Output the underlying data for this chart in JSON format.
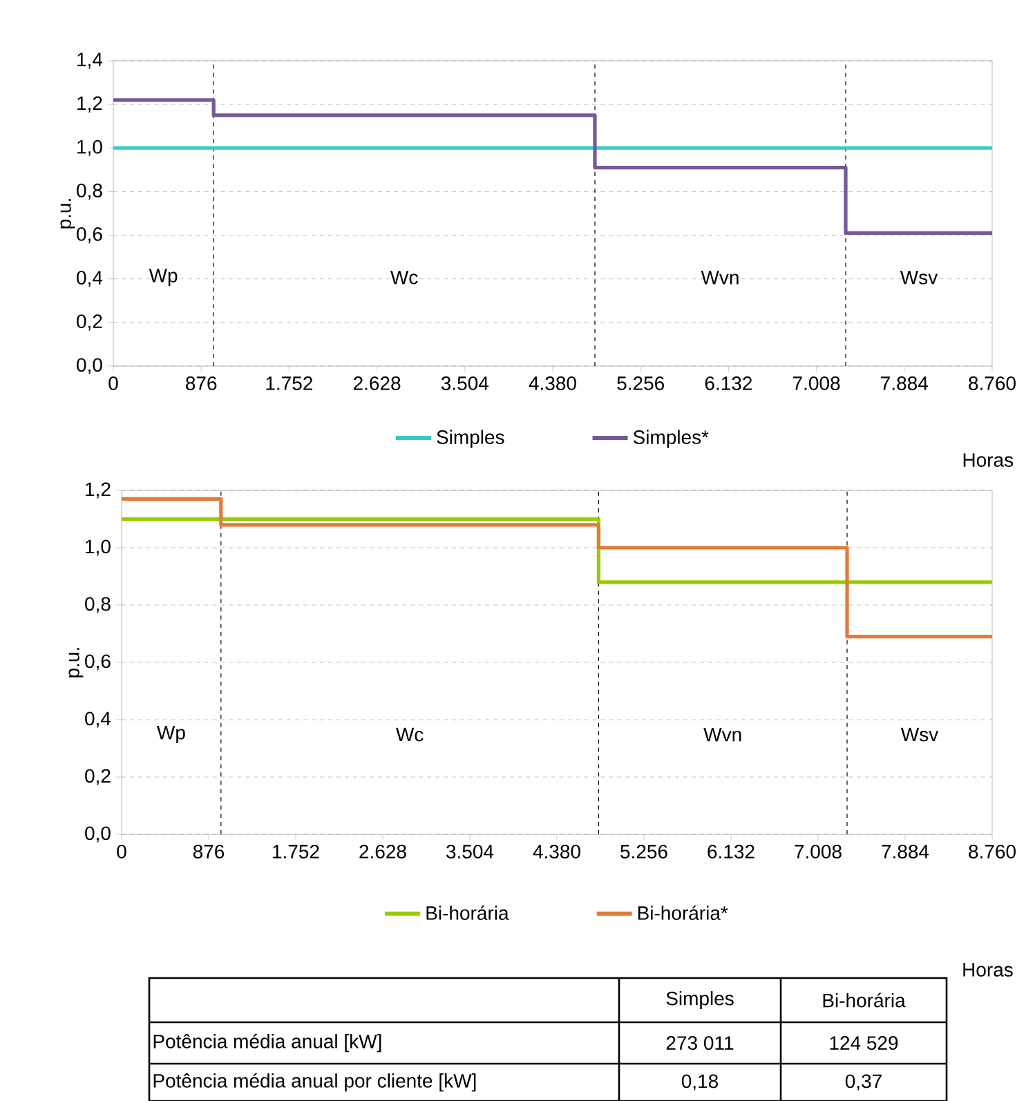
{
  "chart_data": [
    {
      "type": "step",
      "ylabel": "p.u.",
      "xlabel": "Horas",
      "xlim": [
        0,
        8760
      ],
      "ylim": [
        0,
        1.4
      ],
      "xticks": [
        0,
        876,
        {
          "value": 1752,
          "label": "1.752"
        },
        {
          "value": 2628,
          "label": "2.628"
        },
        {
          "value": 3504,
          "label": "3.504"
        },
        {
          "value": 4380,
          "label": "4.380"
        },
        {
          "value": 5256,
          "label": "5.256"
        },
        {
          "value": 6132,
          "label": "6.132"
        },
        {
          "value": 7008,
          "label": "7.008"
        },
        {
          "value": 7884,
          "label": "7.884"
        },
        {
          "value": 8760,
          "label": "8.760"
        }
      ],
      "yticks": [
        {
          "value": 0,
          "label": "0,0"
        },
        {
          "value": 0.2,
          "label": "0,2"
        },
        {
          "value": 0.4,
          "label": "0,4"
        },
        {
          "value": 0.6,
          "label": "0,6"
        },
        {
          "value": 0.8,
          "label": "0,8"
        },
        {
          "value": 1.0,
          "label": "1,0"
        },
        {
          "value": 1.2,
          "label": "1,2"
        },
        {
          "value": 1.4,
          "label": "1,4"
        }
      ],
      "grid": "y",
      "legend": "bottom",
      "series": [
        {
          "name": "Simples",
          "color": "#33cccc",
          "x": [
            0,
            8760
          ],
          "values": [
            1.0,
            1.0
          ]
        },
        {
          "name": "Simples*",
          "color": "#74599a",
          "x": [
            0,
            1000,
            4800,
            7300,
            8760
          ],
          "values": [
            1.22,
            1.15,
            0.91,
            0.61,
            0.61
          ]
        }
      ],
      "ref_lines": [
        {
          "axis": "x",
          "value": 1000,
          "color": "#000000",
          "line_style": "dashed"
        },
        {
          "axis": "x",
          "value": 4800,
          "color": "#000000",
          "line_style": "dashed"
        },
        {
          "axis": "x",
          "value": 7300,
          "color": "#000000",
          "line_style": "dashed"
        }
      ],
      "annotations": [
        "Wp",
        "Wc",
        "Wvn",
        "Wsv"
      ]
    },
    {
      "type": "step",
      "ylabel": "p.u.",
      "xlabel": "Horas",
      "xlim": [
        0,
        8760
      ],
      "ylim": [
        0,
        1.2
      ],
      "xticks": [
        0,
        876,
        {
          "value": 1752,
          "label": "1.752"
        },
        {
          "value": 2628,
          "label": "2.628"
        },
        {
          "value": 3504,
          "label": "3.504"
        },
        {
          "value": 4380,
          "label": "4.380"
        },
        {
          "value": 5256,
          "label": "5.256"
        },
        {
          "value": 6132,
          "label": "6.132"
        },
        {
          "value": 7008,
          "label": "7.008"
        },
        {
          "value": 7884,
          "label": "7.884"
        },
        {
          "value": 8760,
          "label": "8.760"
        }
      ],
      "yticks": [
        {
          "value": 0,
          "label": "0,0"
        },
        {
          "value": 0.2,
          "label": "0,2"
        },
        {
          "value": 0.4,
          "label": "0,4"
        },
        {
          "value": 0.6,
          "label": "0,6"
        },
        {
          "value": 0.8,
          "label": "0,8"
        },
        {
          "value": 1.0,
          "label": "1,0"
        },
        {
          "value": 1.2,
          "label": "1,2"
        }
      ],
      "grid": "y",
      "legend": "bottom",
      "series": [
        {
          "name": "Bi-horária",
          "color": "#99cc00",
          "x": [
            0,
            4800,
            8760
          ],
          "values": [
            1.1,
            0.88,
            0.88
          ]
        },
        {
          "name": "Bi-horária*",
          "color": "#e07b39",
          "x": [
            0,
            1000,
            4800,
            7300,
            8760
          ],
          "values": [
            1.17,
            1.08,
            1.0,
            0.69,
            0.69
          ]
        }
      ],
      "ref_lines": [
        {
          "axis": "x",
          "value": 1000,
          "color": "#000000",
          "line_style": "dashed"
        },
        {
          "axis": "x",
          "value": 4800,
          "color": "#000000",
          "line_style": "dashed"
        },
        {
          "axis": "x",
          "value": 7300,
          "color": "#000000",
          "line_style": "dashed"
        }
      ],
      "annotations": [
        "Wp",
        "Wc",
        "Wvn",
        "Wsv"
      ]
    },
    {
      "type": "other",
      "annotations": [
        "Simples",
        "Bi-horária",
        "Potência média anual [kW]",
        "273 011",
        "124 529",
        "Potência média anual por cliente [kW]",
        "0,18",
        "0,37"
      ]
    }
  ]
}
